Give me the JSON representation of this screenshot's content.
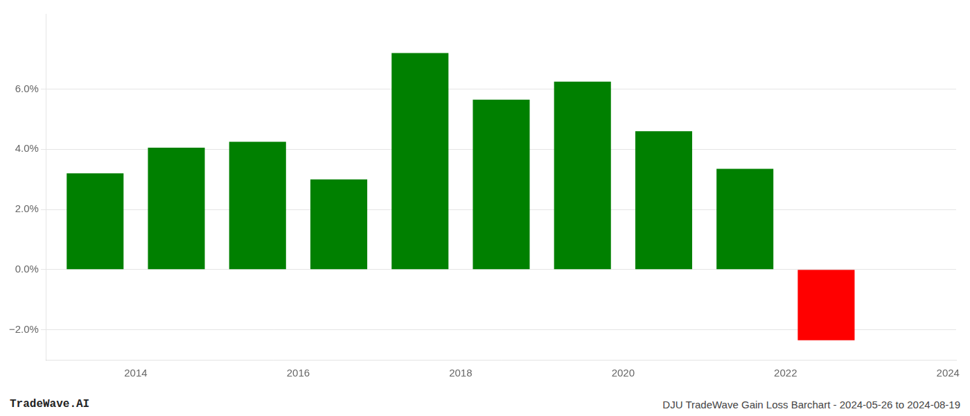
{
  "chart_data": {
    "type": "bar",
    "x": [
      2013,
      2014,
      2015,
      2016,
      2017,
      2018,
      2019,
      2020,
      2021,
      2022
    ],
    "values": [
      0.032,
      0.0405,
      0.0425,
      0.03,
      0.072,
      0.0565,
      0.0625,
      0.046,
      0.0335,
      -0.0235
    ],
    "colors": [
      "#008000",
      "#008000",
      "#008000",
      "#008000",
      "#008000",
      "#008000",
      "#008000",
      "#008000",
      "#008000",
      "#ff0000"
    ],
    "xlim": [
      2012.4,
      2023.6
    ],
    "xticks": [
      {
        "value": 2013.5,
        "label": "2014"
      },
      {
        "value": 2015.5,
        "label": "2016"
      },
      {
        "value": 2017.5,
        "label": "2018"
      },
      {
        "value": 2019.5,
        "label": "2020"
      },
      {
        "value": 2021.5,
        "label": "2022"
      },
      {
        "value": 2023.5,
        "label": "2024"
      }
    ],
    "ylim": [
      -0.03,
      0.085
    ],
    "yticks": [
      {
        "value": -0.02,
        "label": "−2.0%"
      },
      {
        "value": 0.0,
        "label": "0.0%"
      },
      {
        "value": 0.02,
        "label": "2.0%"
      },
      {
        "value": 0.04,
        "label": "4.0%"
      },
      {
        "value": 0.06,
        "label": "6.0%"
      }
    ],
    "grid": true,
    "annotations": [
      "TradeWave.AI",
      "DJU TradeWave Gain Loss Barchart - 2024-05-26 to 2024-08-19"
    ]
  }
}
